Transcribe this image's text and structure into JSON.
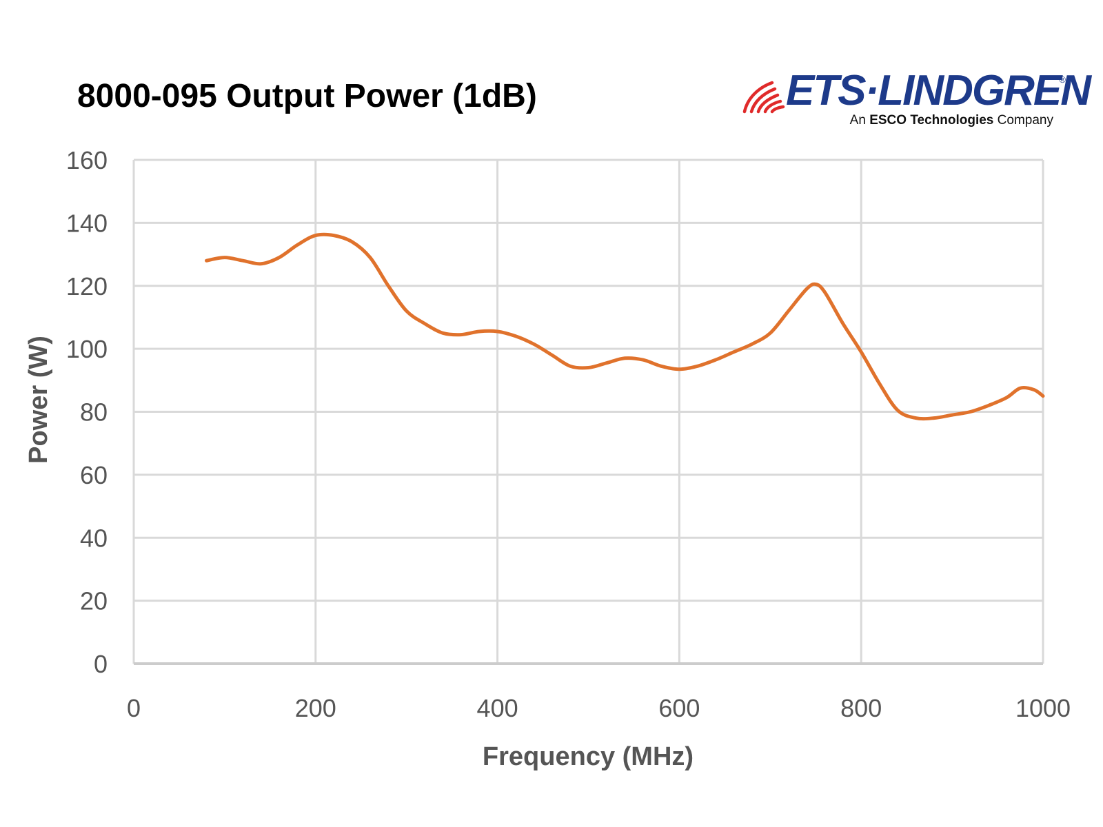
{
  "header": {
    "title": "8000-095 Output Power (1dB)"
  },
  "logo": {
    "wordmark": "ETS·LINDGREN",
    "registered": "®",
    "tagline_prefix": "An ",
    "tagline_brand": "ESCO Technologies",
    "tagline_suffix": " Company",
    "icon": "signal-waves-icon",
    "colors": {
      "waves": "#e02a2a",
      "wordmark": "#1d3a8a"
    }
  },
  "chart_data": {
    "type": "line",
    "title": "8000-095 Output Power (1dB)",
    "xlabel": "Frequency (MHz)",
    "ylabel": "Power (W)",
    "xlim": [
      0,
      1000
    ],
    "ylim": [
      0,
      160
    ],
    "xticks": [
      0,
      200,
      400,
      600,
      800,
      1000
    ],
    "yticks": [
      0,
      20,
      40,
      60,
      80,
      100,
      120,
      140,
      160
    ],
    "grid": true,
    "legend": "none",
    "series": [
      {
        "color": "#e0722c",
        "x": [
          80,
          100,
          120,
          140,
          160,
          180,
          200,
          220,
          240,
          260,
          280,
          300,
          320,
          340,
          360,
          380,
          400,
          420,
          440,
          460,
          480,
          500,
          520,
          540,
          560,
          580,
          600,
          620,
          640,
          660,
          680,
          700,
          720,
          740,
          750,
          760,
          780,
          800,
          820,
          840,
          860,
          880,
          900,
          920,
          940,
          960,
          975,
          990,
          1000
        ],
        "y": [
          128,
          129,
          128,
          127,
          129,
          133,
          136,
          136,
          134,
          129,
          120,
          112,
          108,
          105,
          104.5,
          105.5,
          105.5,
          104,
          101.5,
          98,
          94.5,
          94,
          95.5,
          97,
          96.5,
          94.5,
          93.5,
          94.5,
          96.5,
          99,
          101.5,
          105,
          112,
          119,
          120.5,
          118,
          108,
          99,
          89,
          80.5,
          78,
          78,
          79,
          80,
          82,
          84.5,
          87.5,
          87,
          85
        ]
      }
    ]
  }
}
